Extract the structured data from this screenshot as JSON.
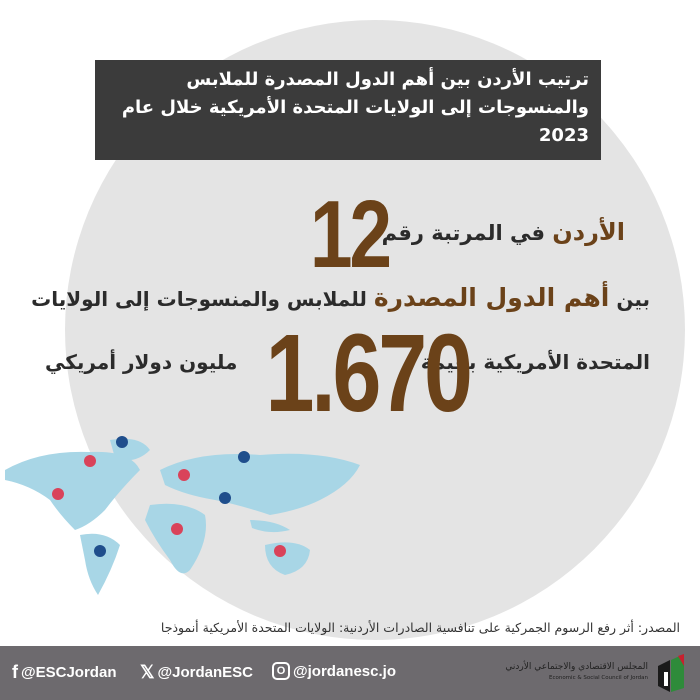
{
  "title": "ترتيب الأردن بين أهم الدول المصدرة للملابس والمنسوجات إلى الولايات المتحدة الأمريكية خلال عام 2023",
  "rank": {
    "country": "الأردن",
    "text": "في المرتبة رقم",
    "number": "12"
  },
  "line2": {
    "prefix": "بين",
    "highlight": "أهم الدول المصدرة",
    "suffix": "للملابس والمنسوجات إلى الولايات"
  },
  "line3": {
    "prefix": "المتحدة الأمريكية بقيمة",
    "value": "1.670",
    "suffix": "مليون دولار أمريكي"
  },
  "source": "المصدر: أثر رفع الرسوم الجمركية على تنافسية الصادرات الأردنية: الولايات المتحدة الأمريكية أنموذجا",
  "footer": {
    "facebook": "@ESCJordan",
    "x": "@JordanESC",
    "instagram": "@jordanesc.jo",
    "logo_ar": "المجلس الاقتصادي والاجتماعي الأردني",
    "logo_en": "Economic & Social Council of Jordan"
  },
  "colors": {
    "accent": "#6b4219",
    "title_bg": "#3b3b3b",
    "footer_bg": "#6d6a6e",
    "map": "#a8d6e6",
    "pin_red": "#d9435a",
    "pin_blue": "#1f4e8c"
  }
}
